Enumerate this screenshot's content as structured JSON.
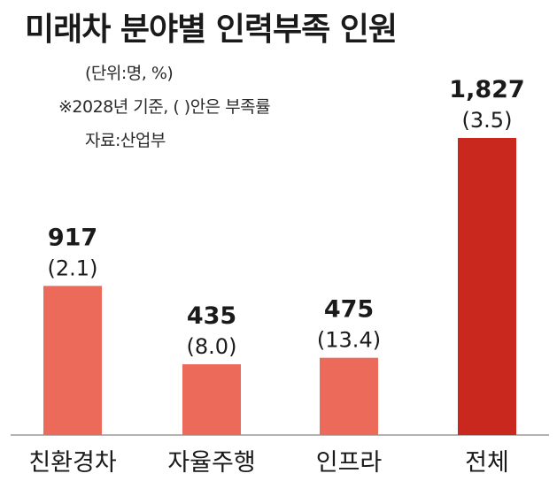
{
  "title": "미래차 분야별 인력부족 인원",
  "notes": {
    "unit": "(단위:명, %)",
    "basis": "※2028년 기준, (  )안은 부족률",
    "source": "자료:산업부"
  },
  "colors": {
    "bar_default": "#ec6a5a",
    "bar_highlight": "#c8281e",
    "baseline": "#9a9a9a"
  },
  "chart_data": {
    "type": "bar",
    "title": "미래차 분야별 인력부족 인원",
    "categories": [
      "친환경차",
      "자율주행",
      "인프라",
      "전체"
    ],
    "values": [
      917,
      435,
      475,
      1827
    ],
    "value_labels": [
      "917",
      "435",
      "475",
      "1,827"
    ],
    "rates": [
      "(2.1)",
      "(8.0)",
      "(13.4)",
      "(3.5)"
    ],
    "rate_values": [
      2.1,
      8.0,
      13.4,
      3.5
    ],
    "highlight_index": 3,
    "ylim": [
      0,
      1827
    ],
    "grid": false,
    "legend": "none"
  }
}
